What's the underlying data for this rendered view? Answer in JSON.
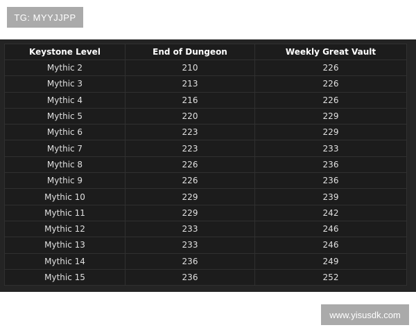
{
  "watermarks": {
    "top": "TG: MYYJJPP",
    "bottom": "www.yisusdk.com"
  },
  "table": {
    "headers": [
      "Keystone Level",
      "End of Dungeon",
      "Weekly Great Vault"
    ],
    "rows": [
      [
        "Mythic 2",
        "210",
        "226"
      ],
      [
        "Mythic 3",
        "213",
        "226"
      ],
      [
        "Mythic 4",
        "216",
        "226"
      ],
      [
        "Mythic 5",
        "220",
        "229"
      ],
      [
        "Mythic 6",
        "223",
        "229"
      ],
      [
        "Mythic 7",
        "223",
        "233"
      ],
      [
        "Mythic 8",
        "226",
        "236"
      ],
      [
        "Mythic 9",
        "226",
        "236"
      ],
      [
        "Mythic 10",
        "229",
        "239"
      ],
      [
        "Mythic 11",
        "229",
        "242"
      ],
      [
        "Mythic 12",
        "233",
        "246"
      ],
      [
        "Mythic 13",
        "233",
        "246"
      ],
      [
        "Mythic 14",
        "236",
        "249"
      ],
      [
        "Mythic 15",
        "236",
        "252"
      ]
    ]
  }
}
